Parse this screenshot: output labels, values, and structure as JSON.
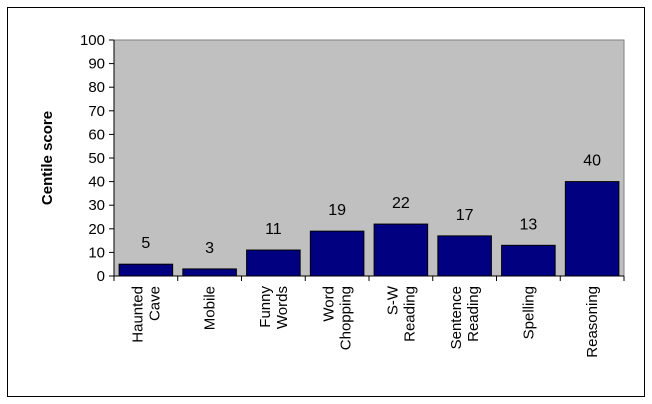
{
  "chart_data": {
    "type": "bar",
    "ylabel": "Centile score",
    "xlabel": "",
    "ylim": [
      0,
      100
    ],
    "yticks": [
      0,
      10,
      20,
      30,
      40,
      50,
      60,
      70,
      80,
      90,
      100
    ],
    "grid": false,
    "categories": [
      [
        "Haunted",
        "Cave"
      ],
      [
        "Mobile"
      ],
      [
        "Funny",
        "Words"
      ],
      [
        "Word",
        "Chopping"
      ],
      [
        "S-W",
        "Reading"
      ],
      [
        "Sentence",
        "Reading"
      ],
      [
        "Spelling"
      ],
      [
        "Reasoning"
      ]
    ],
    "values": [
      5,
      3,
      11,
      19,
      22,
      17,
      13,
      40
    ],
    "data_labels": [
      "5",
      "3",
      "11",
      "19",
      "22",
      "17",
      "13",
      "40"
    ],
    "colors": {
      "bar": "#000080",
      "plot_background": "#c0c0c0",
      "axis": "#000000"
    }
  }
}
